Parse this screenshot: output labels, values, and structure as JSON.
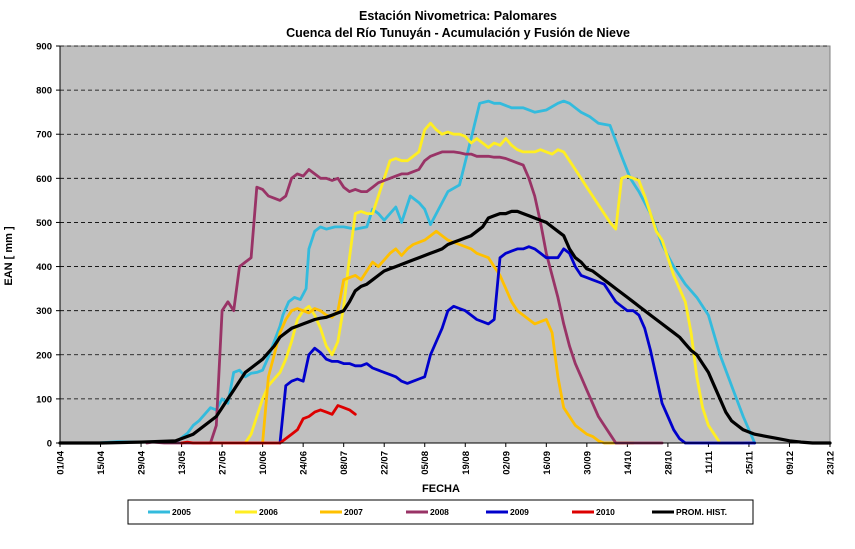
{
  "chart_data": {
    "type": "line",
    "title": "Estación Nivometrica: Palomares",
    "subtitle": "Cuenca del Río Tunuyán - Acumulación y Fusión de Nieve",
    "xlabel": "FECHA",
    "ylabel": "EAN [ mm ]",
    "ylim": [
      0,
      900
    ],
    "yticks": [
      0,
      100,
      200,
      300,
      400,
      500,
      600,
      700,
      800,
      900
    ],
    "x_unit": "day index from 01/04",
    "xlim": [
      0,
      266
    ],
    "xticks": [
      {
        "label": "01/04",
        "x": 0
      },
      {
        "label": "15/04",
        "x": 14
      },
      {
        "label": "29/04",
        "x": 28
      },
      {
        "label": "13/05",
        "x": 42
      },
      {
        "label": "27/05",
        "x": 56
      },
      {
        "label": "10/06",
        "x": 70
      },
      {
        "label": "24/06",
        "x": 84
      },
      {
        "label": "08/07",
        "x": 98
      },
      {
        "label": "22/07",
        "x": 112
      },
      {
        "label": "05/08",
        "x": 126
      },
      {
        "label": "19/08",
        "x": 140
      },
      {
        "label": "02/09",
        "x": 154
      },
      {
        "label": "16/09",
        "x": 168
      },
      {
        "label": "30/09",
        "x": 182
      },
      {
        "label": "14/10",
        "x": 196
      },
      {
        "label": "28/10",
        "x": 210
      },
      {
        "label": "11/11",
        "x": 224
      },
      {
        "label": "25/11",
        "x": 238
      },
      {
        "label": "09/12",
        "x": 252
      },
      {
        "label": "23/12",
        "x": 266
      }
    ],
    "grid": "horizontal dashed",
    "legend_position": "bottom",
    "series": [
      {
        "name": "2005",
        "color": "#33BBDD",
        "x": [
          13,
          20,
          28,
          36,
          40,
          42,
          44,
          46,
          48,
          50,
          52,
          54,
          56,
          58,
          60,
          62,
          64,
          66,
          68,
          70,
          72,
          74,
          76,
          77,
          79,
          81,
          83,
          85,
          86,
          88,
          90,
          92,
          95,
          98,
          102,
          106,
          108,
          110,
          112,
          116,
          118,
          121,
          124,
          126,
          128,
          130,
          134,
          138,
          142,
          145,
          148,
          150,
          152,
          154,
          156,
          160,
          164,
          168,
          172,
          174,
          176,
          178,
          180,
          183,
          186,
          190,
          194,
          197,
          200,
          204,
          208,
          212,
          216,
          220,
          224,
          228,
          232,
          236,
          240
        ],
        "y": [
          0,
          3,
          2,
          2,
          1,
          12,
          22,
          40,
          50,
          65,
          80,
          75,
          100,
          90,
          160,
          165,
          150,
          158,
          160,
          165,
          195,
          230,
          265,
          290,
          320,
          330,
          325,
          350,
          440,
          480,
          490,
          485,
          490,
          490,
          485,
          490,
          530,
          520,
          505,
          535,
          500,
          560,
          545,
          530,
          495,
          520,
          570,
          585,
          690,
          770,
          775,
          770,
          770,
          765,
          760,
          760,
          750,
          755,
          770,
          775,
          770,
          760,
          750,
          740,
          725,
          720,
          650,
          600,
          570,
          520,
          450,
          400,
          360,
          330,
          290,
          200,
          130,
          60,
          0
        ]
      },
      {
        "name": "2006",
        "color": "#FFEE22",
        "x": [
          64,
          66,
          68,
          70,
          72,
          74,
          76,
          78,
          80,
          82,
          84,
          86,
          88,
          90,
          92,
          94,
          96,
          98,
          100,
          102,
          104,
          106,
          108,
          110,
          112,
          114,
          116,
          118,
          120,
          122,
          124,
          126,
          128,
          130,
          132,
          134,
          136,
          138,
          140,
          142,
          144,
          146,
          148,
          150,
          152,
          154,
          156,
          158,
          160,
          162,
          164,
          166,
          168,
          170,
          172,
          174,
          176,
          178,
          180,
          182,
          184,
          186,
          188,
          190,
          192,
          194,
          196,
          198,
          200,
          202,
          204,
          206,
          208,
          210,
          212,
          214,
          216,
          218,
          220,
          222,
          224,
          226,
          228,
          230,
          232,
          234,
          236
        ],
        "y": [
          0,
          20,
          60,
          100,
          130,
          145,
          160,
          190,
          230,
          280,
          300,
          310,
          290,
          260,
          220,
          200,
          230,
          310,
          420,
          520,
          525,
          520,
          520,
          560,
          600,
          640,
          645,
          640,
          640,
          650,
          660,
          710,
          725,
          710,
          700,
          705,
          700,
          700,
          695,
          680,
          690,
          680,
          670,
          680,
          675,
          690,
          675,
          665,
          660,
          660,
          660,
          665,
          660,
          655,
          665,
          660,
          640,
          620,
          600,
          580,
          560,
          540,
          520,
          500,
          485,
          600,
          605,
          600,
          595,
          560,
          520,
          480,
          460,
          420,
          380,
          350,
          320,
          250,
          150,
          80,
          40,
          20,
          0,
          0,
          0,
          0,
          0
        ]
      },
      {
        "name": "2007",
        "color": "#FFC000",
        "x": [
          70,
          72,
          74,
          76,
          78,
          80,
          82,
          84,
          86,
          88,
          90,
          92,
          94,
          96,
          98,
          100,
          102,
          104,
          106,
          108,
          110,
          112,
          114,
          116,
          118,
          120,
          122,
          124,
          126,
          128,
          130,
          132,
          134,
          136,
          138,
          140,
          142,
          144,
          146,
          148,
          150,
          152,
          154,
          156,
          158,
          160,
          162,
          164,
          166,
          168,
          170,
          172,
          174,
          176,
          178,
          180,
          182,
          184,
          186,
          188,
          190,
          192,
          194,
          196,
          198
        ],
        "y": [
          0,
          150,
          200,
          250,
          280,
          300,
          305,
          300,
          295,
          305,
          300,
          290,
          285,
          300,
          370,
          375,
          380,
          370,
          390,
          410,
          400,
          415,
          430,
          440,
          425,
          440,
          450,
          455,
          460,
          470,
          480,
          470,
          460,
          455,
          450,
          445,
          440,
          430,
          425,
          420,
          400,
          380,
          350,
          320,
          300,
          290,
          280,
          270,
          275,
          280,
          250,
          150,
          80,
          60,
          40,
          30,
          20,
          15,
          5,
          0,
          0,
          0,
          0,
          0,
          0
        ]
      },
      {
        "name": "2008",
        "color": "#993366",
        "x": [
          30,
          32,
          36,
          40,
          42,
          46,
          48,
          50,
          52,
          54,
          56,
          58,
          60,
          62,
          64,
          66,
          68,
          70,
          72,
          74,
          76,
          78,
          80,
          82,
          84,
          86,
          88,
          90,
          92,
          94,
          96,
          98,
          100,
          102,
          104,
          106,
          108,
          110,
          112,
          114,
          116,
          118,
          120,
          122,
          124,
          126,
          128,
          130,
          132,
          134,
          136,
          138,
          140,
          142,
          144,
          146,
          148,
          150,
          152,
          154,
          156,
          158,
          160,
          162,
          164,
          166,
          168,
          170,
          172,
          174,
          176,
          178,
          180,
          182,
          184,
          186,
          188,
          190,
          192,
          194,
          196,
          198,
          200,
          202,
          204,
          206,
          208
        ],
        "y": [
          0,
          2,
          0,
          0,
          0,
          0,
          0,
          0,
          0,
          40,
          300,
          320,
          300,
          400,
          410,
          420,
          580,
          575,
          560,
          555,
          550,
          560,
          600,
          610,
          605,
          620,
          610,
          600,
          600,
          595,
          600,
          580,
          570,
          575,
          570,
          570,
          580,
          590,
          595,
          600,
          605,
          610,
          610,
          615,
          620,
          640,
          650,
          655,
          660,
          660,
          660,
          658,
          655,
          655,
          650,
          650,
          650,
          648,
          648,
          645,
          640,
          635,
          630,
          600,
          560,
          500,
          430,
          380,
          330,
          270,
          220,
          180,
          150,
          120,
          90,
          60,
          40,
          20,
          0,
          0,
          0,
          0,
          0,
          0,
          0,
          0,
          0
        ]
      },
      {
        "name": "2009",
        "color": "#0000CC",
        "x": [
          76,
          78,
          80,
          82,
          84,
          86,
          88,
          90,
          92,
          94,
          96,
          98,
          100,
          102,
          104,
          106,
          108,
          110,
          112,
          114,
          116,
          118,
          120,
          122,
          124,
          126,
          128,
          130,
          132,
          134,
          136,
          138,
          140,
          142,
          144,
          146,
          148,
          150,
          152,
          154,
          156,
          158,
          160,
          162,
          164,
          166,
          168,
          170,
          172,
          174,
          176,
          178,
          180,
          182,
          184,
          186,
          188,
          190,
          192,
          194,
          196,
          198,
          200,
          202,
          204,
          206,
          208,
          210,
          212,
          214,
          216,
          218,
          220,
          222,
          224,
          226,
          228,
          230,
          232,
          234,
          236,
          238,
          240
        ],
        "y": [
          0,
          130,
          140,
          145,
          140,
          200,
          215,
          205,
          190,
          185,
          185,
          180,
          180,
          175,
          175,
          180,
          170,
          165,
          160,
          155,
          150,
          140,
          135,
          140,
          145,
          150,
          200,
          230,
          260,
          300,
          310,
          305,
          300,
          290,
          280,
          275,
          270,
          280,
          420,
          430,
          435,
          440,
          440,
          445,
          440,
          430,
          420,
          420,
          420,
          440,
          430,
          400,
          380,
          375,
          370,
          365,
          360,
          340,
          320,
          310,
          300,
          300,
          290,
          260,
          210,
          150,
          90,
          60,
          30,
          10,
          0,
          0,
          0,
          0,
          0,
          0,
          0,
          0,
          0,
          0,
          0,
          0,
          0
        ]
      },
      {
        "name": "2010",
        "color": "#DD0000",
        "x": [
          42,
          44,
          46,
          48,
          50,
          52,
          54,
          56,
          58,
          60,
          62,
          64,
          66,
          68,
          70,
          72,
          74,
          76,
          78,
          80,
          82,
          84,
          86,
          88,
          90,
          92,
          94,
          96,
          98,
          100,
          102
        ],
        "y": [
          0,
          2,
          0,
          0,
          0,
          0,
          0,
          0,
          0,
          0,
          0,
          0,
          0,
          0,
          0,
          0,
          0,
          0,
          10,
          20,
          30,
          55,
          60,
          70,
          75,
          70,
          65,
          85,
          80,
          75,
          65
        ]
      },
      {
        "name": "PROM. HIST.",
        "color": "#000000",
        "x": [
          0,
          14,
          28,
          40,
          46,
          50,
          54,
          56,
          58,
          60,
          62,
          64,
          66,
          68,
          70,
          72,
          74,
          76,
          78,
          80,
          82,
          84,
          86,
          88,
          90,
          92,
          94,
          96,
          98,
          100,
          102,
          104,
          106,
          108,
          110,
          112,
          114,
          116,
          118,
          120,
          122,
          124,
          126,
          128,
          130,
          132,
          134,
          136,
          138,
          140,
          142,
          144,
          146,
          148,
          150,
          152,
          154,
          156,
          158,
          160,
          162,
          164,
          166,
          168,
          170,
          172,
          174,
          176,
          178,
          180,
          182,
          184,
          186,
          188,
          190,
          192,
          194,
          196,
          198,
          200,
          202,
          204,
          206,
          208,
          210,
          212,
          214,
          216,
          218,
          220,
          222,
          224,
          226,
          228,
          230,
          232,
          234,
          236,
          238,
          240,
          244,
          248,
          252,
          256,
          260,
          264,
          266
        ],
        "y": [
          0,
          0,
          2,
          5,
          20,
          40,
          60,
          80,
          100,
          120,
          140,
          160,
          170,
          180,
          190,
          205,
          220,
          240,
          250,
          260,
          265,
          270,
          275,
          280,
          283,
          285,
          290,
          295,
          300,
          320,
          345,
          355,
          360,
          370,
          380,
          390,
          395,
          400,
          405,
          410,
          415,
          420,
          425,
          430,
          435,
          440,
          450,
          455,
          460,
          465,
          470,
          480,
          490,
          510,
          515,
          520,
          520,
          525,
          525,
          520,
          515,
          510,
          505,
          500,
          490,
          480,
          470,
          440,
          420,
          410,
          395,
          390,
          380,
          370,
          360,
          350,
          340,
          330,
          320,
          310,
          300,
          290,
          280,
          270,
          260,
          250,
          240,
          225,
          210,
          200,
          180,
          160,
          130,
          100,
          70,
          50,
          40,
          30,
          25,
          20,
          15,
          10,
          5,
          2,
          0,
          0,
          0
        ]
      }
    ]
  }
}
